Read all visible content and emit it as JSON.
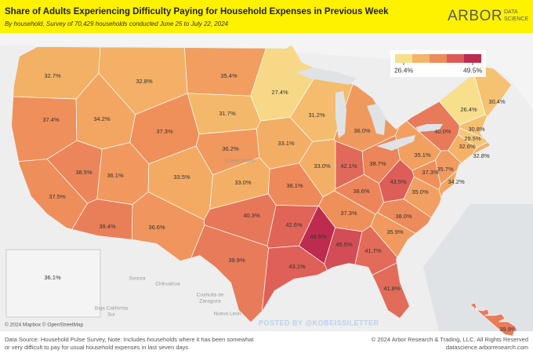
{
  "chart_data": {
    "type": "map",
    "title": "Share of Adults Experiencing Difficulty Paying for Household Expenses in Previous Week",
    "subtitle": "By household, Survey of 70,429 households conducted June 25 to July 22, 2024",
    "brand": [
      "ARBOR",
      "DATA",
      "SCIENCE"
    ],
    "values": [
      32.7,
      37.4,
      37.5,
      38.5,
      34.2,
      32.8,
      37.3,
      36.1,
      39.4,
      33.5,
      36.6,
      35.4,
      31.7,
      36.2,
      33.0,
      40.3,
      39.9,
      27.4,
      33.1,
      38.1,
      42.6,
      43.1,
      31.2,
      33.0,
      36.0,
      42.1,
      38.7,
      38.6,
      37.3,
      49.5,
      45.5,
      41.7,
      41.8,
      35.9,
      38.0,
      35.0,
      43.5,
      35.1,
      40.0,
      37.3,
      34.2,
      35.7,
      32.6,
      32.8,
      29.5,
      30.8,
      26.4,
      30.4,
      36.1,
      39.9
    ],
    "value_labels": [
      "32.7%",
      "37.4%",
      "37.5%",
      "38.5%",
      "34.2%",
      "32.8%",
      "37.3%",
      "36.1%",
      "39.4%",
      "33.5%",
      "36.6%",
      "35.4%",
      "31.7%",
      "36.2%",
      "33.0%",
      "40.3%",
      "39.9%",
      "27.4%",
      "33.1%",
      "38.1%",
      "42.6%",
      "43.1%",
      "31.2%",
      "33.0%",
      "36.0%",
      "42.1%",
      "38.7%",
      "38.6%",
      "37.3%",
      "49.5%",
      "45.5%",
      "41.7%",
      "41.8%",
      "35.9%",
      "38.0%",
      "35.0%",
      "43.5%",
      "35.1%",
      "40.0%",
      "37.3%",
      "34.2%",
      "35.7%",
      "32.6%",
      "32.8%",
      "29.5%",
      "30.8%",
      "26.4%",
      "30.4%",
      "36.1%",
      "39.9%"
    ],
    "legend": {
      "colors": [
        "#f7df8c",
        "#f4b567",
        "#ee8b5a",
        "#dc5b58",
        "#bd2c4f"
      ],
      "ticks": [
        {
          "value": 26.4,
          "label": "26.4%"
        },
        {
          "value": 49.5,
          "label": "49.5%"
        }
      ]
    },
    "map_labels": [
      "United States",
      "Sonora",
      "Chihuahua",
      "Coahuila de",
      "Zaragoza",
      "Nuevo Leon",
      "Baja California",
      "Sur"
    ],
    "attribution": "© 2024 Mapbox © OpenStreetMap",
    "watermark": "POSTED BY @KOBEISSILETTER",
    "source": [
      "Data Source: Household Pulse Survey, Note: Includes households where it has been somewhat",
      "or very difficult to pay for usual household expenses in last seven days"
    ],
    "copyright": [
      "© 2024 Arbor Research & Trading, LLC. All Rights Reserved",
      "datascience.arborresearch.com"
    ]
  }
}
